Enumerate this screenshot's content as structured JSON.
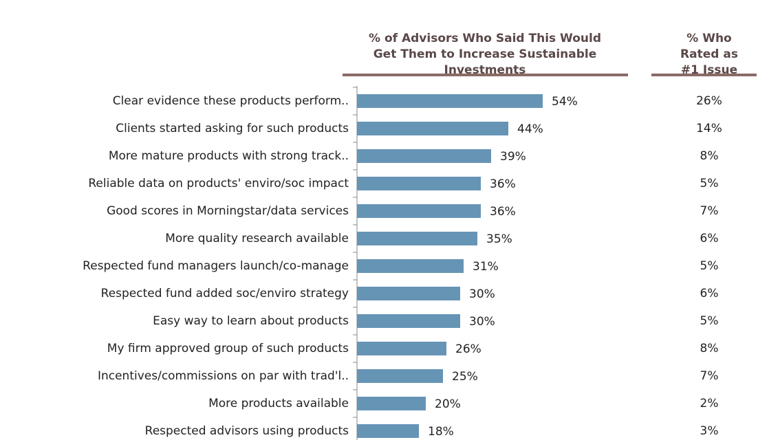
{
  "chart_data": {
    "type": "bar",
    "orientation": "horizontal",
    "categories": [
      "Clear evidence these products perform..",
      "Clients started asking for such products",
      "More mature products with strong track..",
      "Reliable data on products' enviro/soc impact",
      "Good scores in Morningstar/data services",
      "More quality research available",
      "Respected fund managers launch/co-manage",
      "Respected fund added soc/enviro strategy",
      "Easy way to learn about products",
      "My firm approved group of such products",
      "Incentives/commissions on par with trad'l..",
      "More products available",
      "Respected advisors using products"
    ],
    "series": [
      {
        "name": "% of Advisors Who Said This Would Get Them to Increase Sustainable Investments",
        "color": "#6694b5",
        "values": [
          54,
          44,
          39,
          36,
          36,
          35,
          31,
          30,
          30,
          26,
          25,
          20,
          18
        ],
        "value_labels": [
          "54%",
          "44%",
          "39%",
          "36%",
          "36%",
          "35%",
          "31%",
          "30%",
          "30%",
          "26%",
          "25%",
          "20%",
          "18%"
        ]
      },
      {
        "name": "% Who Rated as #1 Issue",
        "values": [
          26,
          14,
          8,
          5,
          7,
          6,
          5,
          6,
          5,
          8,
          7,
          2,
          3
        ],
        "value_labels": [
          "26%",
          "14%",
          "8%",
          "5%",
          "7%",
          "6%",
          "5%",
          "6%",
          "5%",
          "8%",
          "7%",
          "2%",
          "3%"
        ]
      }
    ]
  }
}
